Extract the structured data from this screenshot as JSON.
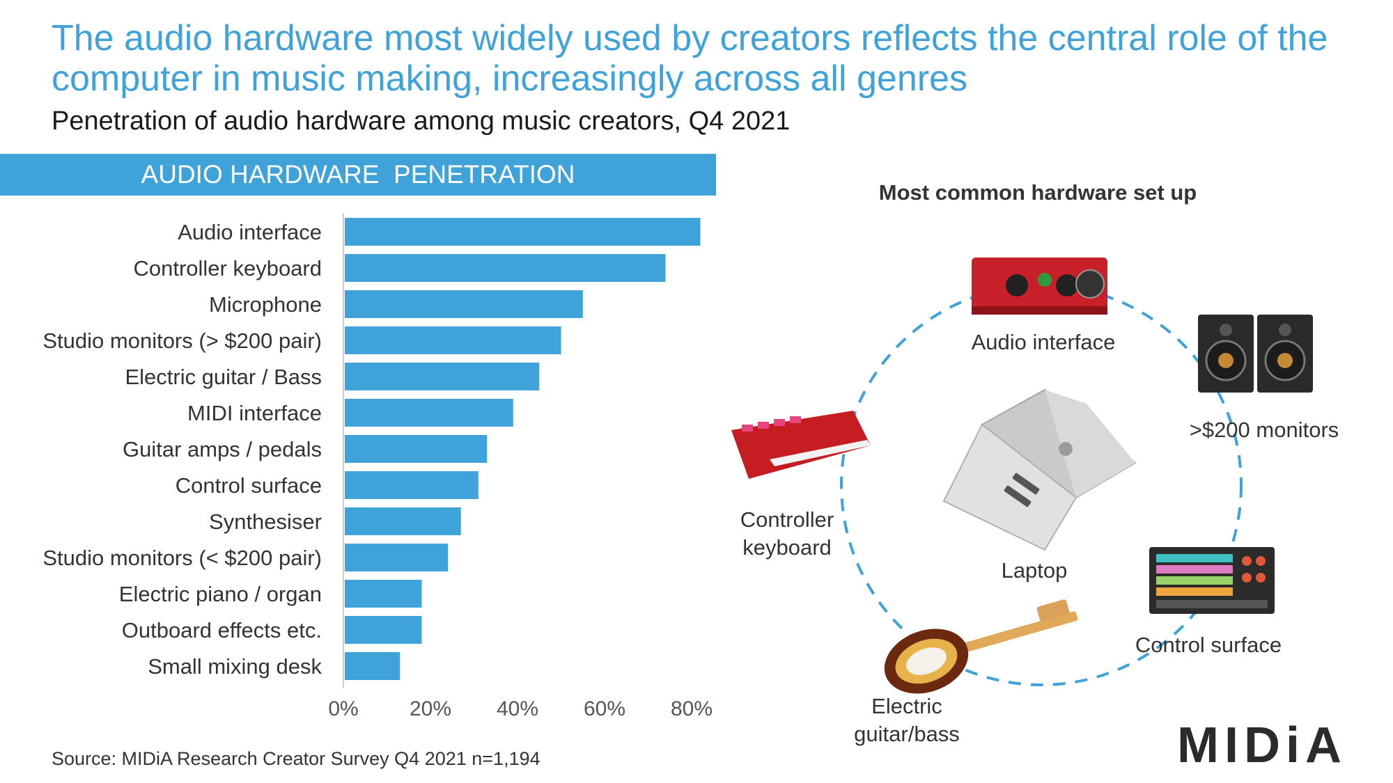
{
  "title": "The audio hardware most widely used by creators reflects the central role of the computer in music making, increasingly across all genres",
  "subtitle": "Penetration of audio hardware among music creators, Q4 2021",
  "banner": "AUDIO HARDWARE  PENETRATION",
  "source": "Source: MIDiA Research Creator Survey Q4 2021 n=1,194",
  "setup": {
    "title": "Most common hardware set up",
    "labels": {
      "audio_interface": "Audio interface",
      "monitors": ">$200 monitors",
      "controller_keyboard": "Controller keyboard",
      "laptop": "Laptop",
      "control_surface": "Control surface",
      "electric_guitar": "Electric guitar/bass"
    }
  },
  "logo": "MIDiA",
  "colors": {
    "accent": "#3fa2d9",
    "text": "#333333"
  },
  "chart_data": {
    "type": "bar",
    "orientation": "horizontal",
    "title": "AUDIO HARDWARE  PENETRATION",
    "categories": [
      "Audio interface",
      "Controller keyboard",
      "Microphone",
      "Studio monitors (> $200 pair)",
      "Electric guitar / Bass",
      "MIDI interface",
      "Guitar amps / pedals",
      "Control surface",
      "Synthesiser",
      "Studio monitors (< $200 pair)",
      "Electric piano / organ",
      "Outboard effects etc.",
      "Small mixing desk"
    ],
    "values": [
      82,
      74,
      55,
      50,
      45,
      39,
      33,
      31,
      27,
      24,
      18,
      18,
      13
    ],
    "xlim": [
      0,
      80
    ],
    "xticks": [
      "0%",
      "20%",
      "40%",
      "60%",
      "80%"
    ],
    "xlabel": "",
    "ylabel": "",
    "color": "#3fa2d9"
  }
}
